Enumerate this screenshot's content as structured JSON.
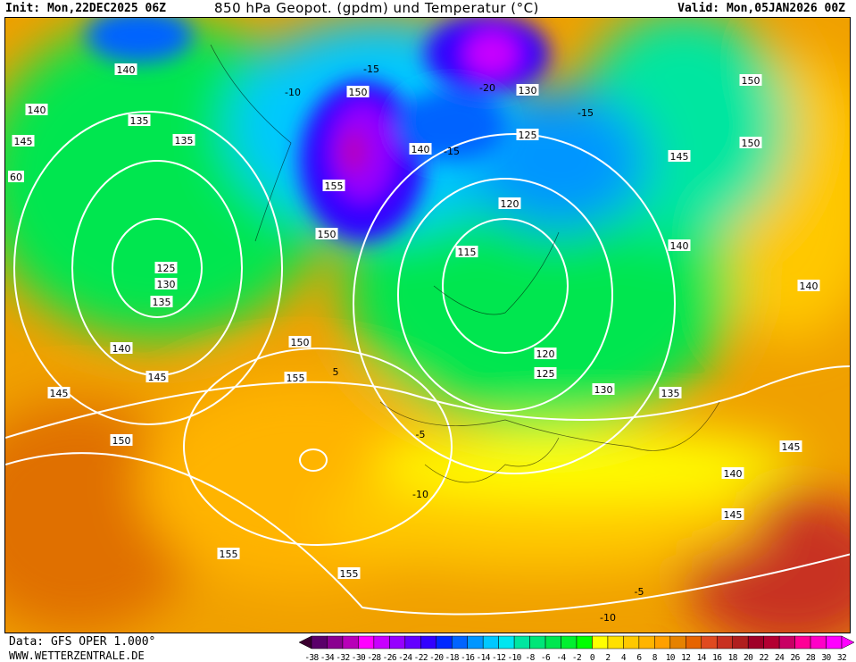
{
  "header": {
    "init": "Init: Mon,22DEC2025 06Z",
    "title": "850 hPa Geopot. (gpdm) und Temperatur (°C)",
    "valid": "Valid: Mon,05JAN2026 00Z"
  },
  "footer": {
    "data_source": "Data: GFS OPER 1.000°",
    "website": "WWW.WETTERZENTRALE.DE"
  },
  "legend": {
    "labels": [
      "-38",
      "-34",
      "-32",
      "-30",
      "-28",
      "-26",
      "-24",
      "-22",
      "-20",
      "-18",
      "-16",
      "-14",
      "-12",
      "-10",
      "-8",
      "-6",
      "-4",
      "-2",
      "0",
      "2",
      "4",
      "6",
      "8",
      "10",
      "12",
      "14",
      "16",
      "18",
      "20",
      "22",
      "24",
      "26",
      "28",
      "30",
      "32"
    ],
    "colors": [
      "#3a0030",
      "#5a006a",
      "#8a0090",
      "#b800b8",
      "#ff00ff",
      "#c800ff",
      "#9600ff",
      "#6400ff",
      "#3200ff",
      "#0028ff",
      "#0064ff",
      "#0096ff",
      "#00c8ff",
      "#00e6f0",
      "#00e6a0",
      "#00e678",
      "#00e650",
      "#00f030",
      "#00ff00",
      "#ffff00",
      "#ffe000",
      "#ffc800",
      "#ffb400",
      "#ffa000",
      "#e68200",
      "#e66400",
      "#e04a20",
      "#c83020",
      "#b01e1e",
      "#a00028",
      "#b40032",
      "#c80064",
      "#ff0096",
      "#ff00c8",
      "#ff00ff",
      "#ff00ff"
    ]
  },
  "map": {
    "geopotential_labels": [
      "140",
      "140",
      "135",
      "145",
      "135",
      "125",
      "130",
      "135",
      "140",
      "145",
      "150",
      "150",
      "155",
      "150",
      "150",
      "145",
      "140",
      "140",
      "130",
      "125",
      "120",
      "115",
      "120",
      "125",
      "130",
      "135",
      "140",
      "145",
      "150",
      "155",
      "155",
      "145",
      "140",
      "150",
      "155",
      "145",
      "60"
    ],
    "temperature_labels": [
      "-10",
      "-15",
      "-20",
      "-15",
      "-15",
      "5",
      "-5",
      "-10",
      "-5",
      "-10"
    ]
  }
}
